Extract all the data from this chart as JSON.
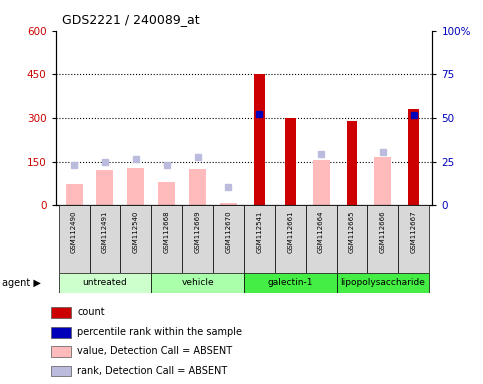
{
  "title": "GDS2221 / 240089_at",
  "samples": [
    "GSM112490",
    "GSM112491",
    "GSM112540",
    "GSM112668",
    "GSM112669",
    "GSM112670",
    "GSM112541",
    "GSM112661",
    "GSM112664",
    "GSM112665",
    "GSM112666",
    "GSM112667"
  ],
  "count_values": [
    null,
    null,
    null,
    null,
    null,
    null,
    450,
    300,
    null,
    290,
    null,
    330
  ],
  "rank_values": [
    null,
    null,
    null,
    null,
    null,
    null,
    315,
    null,
    null,
    null,
    null,
    310
  ],
  "absent_value_bars": [
    75,
    120,
    130,
    80,
    125,
    10,
    null,
    null,
    155,
    null,
    165,
    null
  ],
  "absent_rank_dots": [
    140,
    150,
    160,
    140,
    165,
    65,
    null,
    null,
    175,
    null,
    185,
    null
  ],
  "ylim_left": [
    0,
    600
  ],
  "ylim_right": [
    0,
    100
  ],
  "yticks_left": [
    0,
    150,
    300,
    450,
    600
  ],
  "yticks_right": [
    0,
    25,
    50,
    75,
    100
  ],
  "left_tick_color": "#cc0000",
  "right_tick_color": "#0000bb",
  "dotted_lines": [
    150,
    300,
    450
  ],
  "group_defs": [
    {
      "label": "untreated",
      "start": 0,
      "end": 2,
      "color": "#ccffcc"
    },
    {
      "label": "vehicle",
      "start": 3,
      "end": 5,
      "color": "#aaffaa"
    },
    {
      "label": "galectin-1",
      "start": 6,
      "end": 8,
      "color": "#44ee44"
    },
    {
      "label": "lipopolysaccharide",
      "start": 9,
      "end": 11,
      "color": "#44ee44"
    }
  ],
  "legend_items": [
    {
      "label": "count",
      "color": "#cc0000"
    },
    {
      "label": "percentile rank within the sample",
      "color": "#0000bb"
    },
    {
      "label": "value, Detection Call = ABSENT",
      "color": "#ffbbbb"
    },
    {
      "label": "rank, Detection Call = ABSENT",
      "color": "#bbbbdd"
    }
  ],
  "bar_color_red": "#cc0000",
  "bar_color_blue": "#0000bb",
  "bar_color_pink": "#ffbbbb",
  "dot_color_purple": "#bbbbdd",
  "sample_box_color": "#d8d8d8",
  "fig_bg": "#ffffff"
}
